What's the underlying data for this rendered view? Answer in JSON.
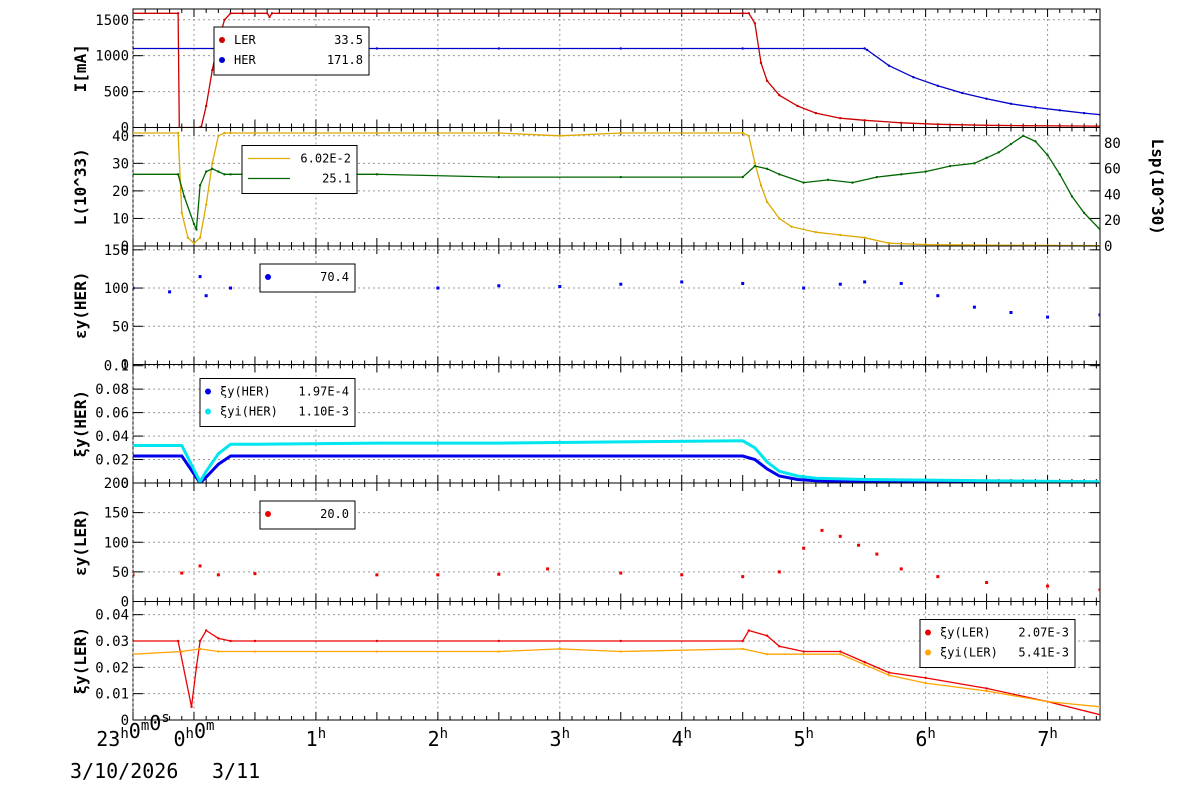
{
  "chart_data": [
    {
      "type": "line",
      "ylabel": "I[mA]",
      "ylim": [
        0,
        1650
      ],
      "yticks": [
        0,
        500,
        1000,
        1500
      ],
      "legend_position": "top-left",
      "series": [
        {
          "name": "LER",
          "legend_value": "33.5",
          "color": "#cc0000",
          "x": [
            0,
            0.37,
            0.38,
            0.55,
            0.56,
            0.6,
            0.65,
            0.7,
            0.75,
            0.8,
            0.9,
            1.0,
            1.1,
            1.12,
            1.14,
            1.5,
            2.0,
            3.0,
            4.0,
            5.0,
            5.05,
            5.1,
            5.15,
            5.2,
            5.3,
            5.45,
            5.6,
            5.8,
            6.0,
            6.3,
            6.6,
            7.0,
            7.3,
            7.6,
            7.93
          ],
          "y": [
            1590,
            1590,
            0,
            0,
            10,
            300,
            800,
            1200,
            1500,
            1590,
            1590,
            1590,
            1590,
            1540,
            1590,
            1590,
            1590,
            1590,
            1590,
            1590,
            1590,
            1450,
            900,
            650,
            450,
            300,
            200,
            130,
            100,
            65,
            45,
            30,
            25,
            22,
            20
          ]
        },
        {
          "name": "HER",
          "legend_value": "171.8",
          "color": "#0000cc",
          "x": [
            0,
            1.0,
            2.0,
            3.0,
            4.0,
            5.0,
            6.0,
            6.02,
            6.2,
            6.4,
            6.6,
            6.8,
            7.0,
            7.2,
            7.4,
            7.6,
            7.8,
            7.93
          ],
          "y": [
            1100,
            1100,
            1100,
            1100,
            1100,
            1100,
            1100,
            1080,
            860,
            700,
            580,
            480,
            400,
            330,
            280,
            240,
            200,
            180
          ]
        }
      ]
    },
    {
      "type": "line",
      "ylabel": "L(10^33)",
      "ylim": [
        0,
        43
      ],
      "yticks": [
        0,
        10,
        20,
        30,
        40
      ],
      "right_ylabel": "Lsp(10^30)",
      "right_ylim": [
        0,
        92
      ],
      "right_yticks": [
        0,
        20,
        40,
        60,
        80
      ],
      "legend_position": "top-left",
      "series": [
        {
          "name": "",
          "legend_value": "6.02E-2",
          "color": "#ddaa00",
          "x": [
            0,
            0.37,
            0.4,
            0.45,
            0.5,
            0.55,
            0.6,
            0.65,
            0.7,
            0.75,
            0.8,
            1.0,
            2.0,
            3.0,
            3.5,
            4.0,
            5.0,
            5.05,
            5.1,
            5.15,
            5.2,
            5.3,
            5.4,
            5.6,
            5.8,
            6.0,
            6.2,
            6.5,
            7.0,
            7.5,
            7.93
          ],
          "y": [
            41,
            41,
            12,
            3,
            1,
            3,
            15,
            30,
            40,
            41,
            41,
            41,
            41,
            41,
            40,
            41,
            41,
            40,
            30,
            22,
            16,
            10,
            7,
            5,
            4,
            3,
            1,
            0.5,
            0.3,
            0.2,
            0.1
          ]
        },
        {
          "name": "",
          "legend_value": "25.1",
          "color": "#006600",
          "x": [
            0,
            0.37,
            0.42,
            0.5,
            0.52,
            0.55,
            0.6,
            0.65,
            0.7,
            0.75,
            0.8,
            1.0,
            2.0,
            3.0,
            4.0,
            5.0,
            5.1,
            5.2,
            5.3,
            5.5,
            5.7,
            5.9,
            6.1,
            6.3,
            6.5,
            6.7,
            6.9,
            7.0,
            7.1,
            7.2,
            7.3,
            7.4,
            7.5,
            7.6,
            7.7,
            7.8,
            7.93
          ],
          "y": [
            26,
            26,
            18,
            8,
            6,
            22,
            27,
            28,
            27,
            26,
            26,
            26,
            26,
            25,
            25,
            25,
            29,
            28,
            26,
            23,
            24,
            23,
            25,
            26,
            27,
            29,
            30,
            32,
            34,
            37,
            40,
            38,
            33,
            26,
            18,
            12,
            6
          ]
        }
      ]
    },
    {
      "type": "scatter",
      "ylabel": "εy(HER)",
      "ylim": [
        0,
        155
      ],
      "yticks": [
        0,
        50,
        100,
        150
      ],
      "legend_position": "top-left",
      "series": [
        {
          "name": "",
          "legend_value": "70.4",
          "color": "#0000ee",
          "x": [
            0,
            0.3,
            0.55,
            0.6,
            0.8,
            1.5,
            2.5,
            3.0,
            3.5,
            4.0,
            4.5,
            5.0,
            5.5,
            5.8,
            6.0,
            6.3,
            6.6,
            6.9,
            7.2,
            7.5,
            7.93
          ],
          "y": [
            100,
            95,
            115,
            90,
            100,
            98,
            100,
            103,
            102,
            105,
            108,
            106,
            100,
            105,
            108,
            106,
            90,
            75,
            68,
            62,
            65
          ]
        }
      ]
    },
    {
      "type": "line",
      "ylabel": "ξy(HER)",
      "ylim": [
        0,
        0.101
      ],
      "yticks": [
        0,
        0.02,
        0.04,
        0.06,
        0.08,
        0.1
      ],
      "legend_position": "top-left",
      "series": [
        {
          "name": "ξy(HER)",
          "legend_value": "1.97E-4",
          "color": "#0000ee",
          "x": [
            0,
            0.4,
            0.55,
            0.6,
            0.7,
            0.8,
            1.0,
            2.0,
            3.0,
            4.0,
            5.0,
            5.1,
            5.2,
            5.3,
            5.45,
            5.6,
            6.0,
            7.0,
            7.93
          ],
          "y": [
            0.023,
            0.023,
            0.0,
            0.005,
            0.016,
            0.023,
            0.023,
            0.023,
            0.023,
            0.023,
            0.023,
            0.02,
            0.012,
            0.006,
            0.003,
            0.002,
            0.001,
            0.0005,
            0.0002
          ]
        },
        {
          "name": "ξyi(HER)",
          "legend_value": "1.10E-3",
          "color": "#00e5ee",
          "x": [
            0,
            0.4,
            0.55,
            0.6,
            0.7,
            0.8,
            1.0,
            2.0,
            3.0,
            4.0,
            5.0,
            5.1,
            5.2,
            5.3,
            5.45,
            5.6,
            6.0,
            7.0,
            7.93
          ],
          "y": [
            0.032,
            0.032,
            0.001,
            0.01,
            0.025,
            0.033,
            0.033,
            0.034,
            0.034,
            0.035,
            0.036,
            0.03,
            0.018,
            0.01,
            0.006,
            0.004,
            0.003,
            0.002,
            0.001
          ]
        }
      ]
    },
    {
      "type": "scatter",
      "ylabel": "εy(LER)",
      "ylim": [
        0,
        200
      ],
      "yticks": [
        0,
        50,
        100,
        150,
        200
      ],
      "legend_position": "top-left",
      "series": [
        {
          "name": "",
          "legend_value": "20.0",
          "color": "#ee0000",
          "x": [
            0,
            0.4,
            0.55,
            0.7,
            1.0,
            2.0,
            2.5,
            3.0,
            3.4,
            4.0,
            4.5,
            5.0,
            5.3,
            5.5,
            5.65,
            5.8,
            5.95,
            6.1,
            6.3,
            6.6,
            7.0,
            7.5,
            7.93
          ],
          "y": [
            45,
            48,
            60,
            45,
            47,
            45,
            45,
            46,
            55,
            48,
            45,
            42,
            50,
            90,
            120,
            110,
            95,
            80,
            55,
            42,
            32,
            26,
            20
          ]
        }
      ]
    },
    {
      "type": "line",
      "ylabel": "ξy(LER)",
      "ylim": [
        0,
        0.045
      ],
      "yticks": [
        0,
        0.01,
        0.02,
        0.03,
        0.04
      ],
      "legend_position": "top-right",
      "series": [
        {
          "name": "ξy(LER)",
          "legend_value": "2.07E-3",
          "color": "#ee0000",
          "x": [
            0,
            0.37,
            0.48,
            0.52,
            0.55,
            0.6,
            0.7,
            0.8,
            1.0,
            2.0,
            3.0,
            4.0,
            5.0,
            5.05,
            5.2,
            5.3,
            5.5,
            5.8,
            6.0,
            6.2,
            6.5,
            7.0,
            7.5,
            7.93
          ],
          "y": [
            0.03,
            0.03,
            0.005,
            0.02,
            0.03,
            0.034,
            0.031,
            0.03,
            0.03,
            0.03,
            0.03,
            0.03,
            0.03,
            0.034,
            0.032,
            0.028,
            0.026,
            0.026,
            0.022,
            0.018,
            0.016,
            0.012,
            0.007,
            0.002
          ]
        },
        {
          "name": "ξyi(LER)",
          "legend_value": "5.41E-3",
          "color": "#ffa500",
          "x": [
            0,
            0.4,
            0.55,
            0.7,
            1.0,
            2.0,
            3.0,
            3.5,
            4.0,
            5.0,
            5.2,
            5.5,
            5.8,
            6.0,
            6.2,
            6.5,
            7.0,
            7.5,
            7.93
          ],
          "y": [
            0.025,
            0.026,
            0.027,
            0.026,
            0.026,
            0.026,
            0.026,
            0.027,
            0.026,
            0.027,
            0.025,
            0.025,
            0.025,
            0.021,
            0.017,
            0.014,
            0.011,
            0.007,
            0.005
          ]
        }
      ]
    }
  ],
  "xaxis": {
    "xlim": [
      0,
      7.93
    ],
    "ticks": [
      {
        "x": 0,
        "main": "23",
        "sup": "h",
        "rest": "0",
        "sup2": "m",
        "rest2": "0",
        "sup3": "s"
      },
      {
        "x": 0.5,
        "main": "0",
        "sup": "h",
        "rest": "0",
        "sup2": "m",
        "rest2": "",
        "sup3": ""
      },
      {
        "x": 1.5,
        "main": "1",
        "sup": "h",
        "rest": "",
        "sup2": "",
        "rest2": "",
        "sup3": ""
      },
      {
        "x": 2.5,
        "main": "2",
        "sup": "h",
        "rest": "",
        "sup2": "",
        "rest2": "",
        "sup3": ""
      },
      {
        "x": 3.5,
        "main": "3",
        "sup": "h",
        "rest": "",
        "sup2": "",
        "rest2": "",
        "sup3": ""
      },
      {
        "x": 4.5,
        "main": "4",
        "sup": "h",
        "rest": "",
        "sup2": "",
        "rest2": "",
        "sup3": ""
      },
      {
        "x": 5.5,
        "main": "5",
        "sup": "h",
        "rest": "",
        "sup2": "",
        "rest2": "",
        "sup3": ""
      },
      {
        "x": 6.5,
        "main": "6",
        "sup": "h",
        "rest": "",
        "sup2": "",
        "rest2": "",
        "sup3": ""
      },
      {
        "x": 7.5,
        "main": "7",
        "sup": "h",
        "rest": "",
        "sup2": "",
        "rest2": "",
        "sup3": ""
      }
    ],
    "date_start": "3/10/2026",
    "date_next": "3/11",
    "grid": true
  }
}
